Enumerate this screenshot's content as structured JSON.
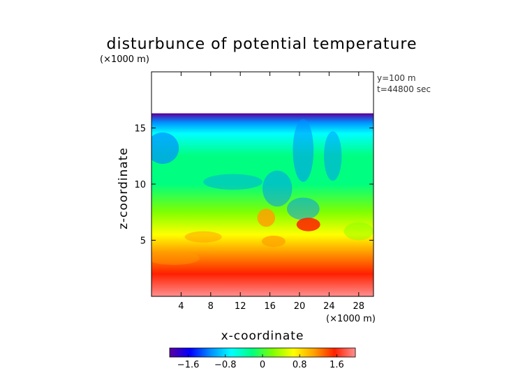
{
  "chart_data": {
    "type": "heatmap",
    "title": "disturbunce of potential temperature",
    "xlabel": "x-coordinate",
    "ylabel": "z-coordinate",
    "x_unit": "(×1000 m)",
    "z_unit": "(×1000 m)",
    "annotations": [
      "y=100 m",
      "t=44800 sec"
    ],
    "xlim": [
      0,
      30
    ],
    "ylim": [
      0,
      20
    ],
    "x_ticks": [
      "4",
      "8",
      "12",
      "16",
      "20",
      "24",
      "28"
    ],
    "y_ticks": [
      "5",
      "10",
      "15"
    ],
    "data_top_z": 16.3,
    "colorbar": {
      "range": [
        -2.0,
        2.0
      ],
      "tick_labels": [
        "−1.6",
        "−0.8",
        "0",
        "0.8",
        "1.6"
      ],
      "colors": [
        "#5a00a0",
        "#0000ff",
        "#0090ff",
        "#00ffff",
        "#00ff80",
        "#80ff00",
        "#ffff00",
        "#ffa000",
        "#ff2000",
        "#ff9090"
      ]
    },
    "field_profile": [
      {
        "z": 0.0,
        "value": 1.9
      },
      {
        "z": 2.0,
        "value": 1.5
      },
      {
        "z": 4.0,
        "value": 1.1
      },
      {
        "z": 5.5,
        "value": 0.6
      },
      {
        "z": 7.5,
        "value": 0.1
      },
      {
        "z": 10.0,
        "value": -0.2
      },
      {
        "z": 12.5,
        "value": -0.35
      },
      {
        "z": 14.5,
        "value": -0.7
      },
      {
        "z": 15.5,
        "value": -1.1
      },
      {
        "z": 16.3,
        "value": -1.6
      }
    ]
  }
}
